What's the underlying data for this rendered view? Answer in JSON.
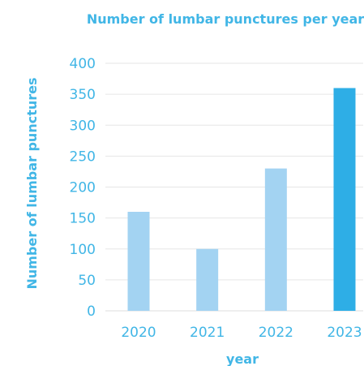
{
  "chart_data": {
    "type": "bar",
    "title": "Number of lumbar punctures per year",
    "xlabel": "year",
    "ylabel": "Number of lumbar punctures",
    "categories": [
      "2020",
      "2021",
      "2022",
      "2023"
    ],
    "values": [
      160,
      100,
      230,
      360
    ],
    "ylim": [
      0,
      400
    ],
    "yticks": [
      "0",
      "50",
      "100",
      "150",
      "200",
      "250",
      "300",
      "350",
      "400"
    ],
    "grid": true,
    "legend": "none",
    "colors": {
      "text": "#41B6E6",
      "bar_light": "#A3D3F2",
      "bar_highlight": "#2EAEE6",
      "grid": "#E6E6E6"
    },
    "highlight_index": 3
  }
}
